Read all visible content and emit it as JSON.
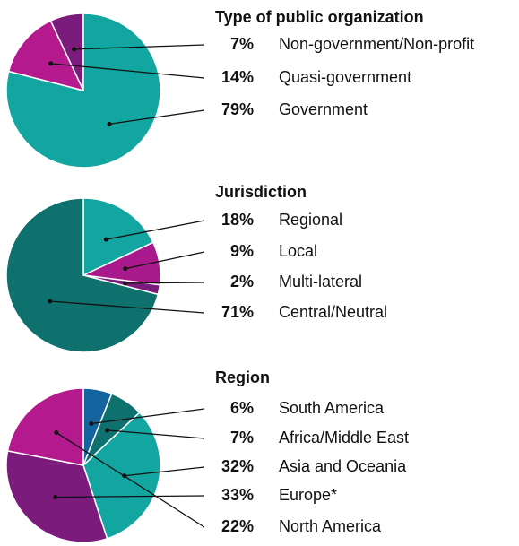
{
  "chart_data": [
    {
      "type": "pie",
      "title": "Type of public organization",
      "direction": "counterclockwise",
      "categories": [
        "Non-government/Non-profit",
        "Quasi-government",
        "Government"
      ],
      "values": [
        7,
        14,
        79
      ],
      "value_labels": [
        "7%",
        "14%",
        "79%"
      ],
      "colors": [
        "#7b1c7c",
        "#b41a8e",
        "#13a6a1"
      ]
    },
    {
      "type": "pie",
      "title": "Jurisdiction",
      "direction": "clockwise",
      "categories": [
        "Regional",
        "Local",
        "Multi-lateral",
        "Central/Neutral"
      ],
      "values": [
        18,
        9,
        2,
        71
      ],
      "value_labels": [
        "18%",
        "9%",
        "2%",
        "71%"
      ],
      "colors": [
        "#13a6a1",
        "#a8198c",
        "#7b1c7c",
        "#0e716d"
      ]
    },
    {
      "type": "pie",
      "title": "Region",
      "direction": "clockwise",
      "categories": [
        "South America",
        "Africa/Middle East",
        "Asia and Oceania",
        "Europe*",
        "North America"
      ],
      "values": [
        6,
        7,
        32,
        33,
        22
      ],
      "value_labels": [
        "6%",
        "7%",
        "32%",
        "33%",
        "22%"
      ],
      "colors": [
        "#14659f",
        "#0e716d",
        "#13a6a1",
        "#7b1c7c",
        "#b41a8e"
      ]
    }
  ]
}
